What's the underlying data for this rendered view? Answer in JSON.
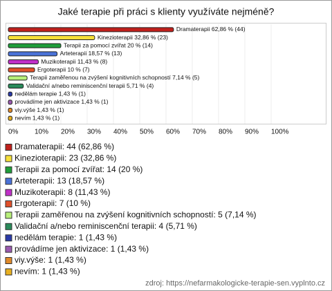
{
  "chart_data": {
    "type": "bar",
    "orientation": "horizontal",
    "title": "Jaké terapie při práci s klienty využíváte nejméně?",
    "categories": [
      "Dramaterapii",
      "Kinezioterapii",
      "Terapii za pomocí zvířat",
      "Arteterapii",
      "Muzikoterapii",
      "Ergoterapii",
      "Terapii zaměřenou na zvýšení kognitivních schopností",
      "Validační a/nebo reminiscenční terapii",
      "nedělám terapie",
      "provádíme jen aktivizace",
      "viy.výše",
      "nevím"
    ],
    "values": [
      62.86,
      32.86,
      20,
      18.57,
      11.43,
      10,
      7.14,
      5.71,
      1.43,
      1.43,
      1.43,
      1.43
    ],
    "value_labels": [
      "Dramaterapii 62,86 % (44)",
      "Kinezioterapii 32,86 % (23)",
      "Terapii za pomocí zvířat 20 % (14)",
      "Arteterapii 18,57 % (13)",
      "Muzikoterapii 11,43 % (8)",
      "Ergoterapii 10 % (7)",
      "Terapii zaměřenou na zvýšení kognitivních schopností 7,14 % (5)",
      "Validační a/nebo reminiscenční terapii 5,71 % (4)",
      "nedělám terapie 1,43 % (1)",
      "provádíme jen aktivizace 1,43 % (1)",
      "viy.výše 1,43 % (1)",
      "nevím 1,43 % (1)"
    ],
    "legend_labels": [
      "Dramaterapii: 44 (62,86 %)",
      "Kinezioterapii: 23 (32,86 %)",
      "Terapii za pomocí zvířat: 14 (20 %)",
      "Arteterapii: 13 (18,57 %)",
      "Muzikoterapii: 8 (11,43 %)",
      "Ergoterapii: 7 (10 %)",
      "Terapii zaměřenou na zvýšení kognitivních schopností: 5 (7,14 %)",
      "Validační a/nebo reminiscenční terapii: 4 (5,71 %)",
      "nedělám terapie: 1 (1,43 %)",
      "provádíme jen aktivizace: 1 (1,43 %)",
      "viy.výše: 1 (1,43 %)",
      "nevím: 1 (1,43 %)"
    ],
    "colors": [
      "#c0201c",
      "#f6e03a",
      "#1f9e3a",
      "#4a72d8",
      "#c030c8",
      "#e0502a",
      "#b8f07a",
      "#2a8a5a",
      "#2a3aa8",
      "#9a5ab0",
      "#e08a2a",
      "#e8b020"
    ],
    "xlim": [
      0,
      100
    ],
    "xticks": [
      {
        "value": 0,
        "label": "0%"
      },
      {
        "value": 10,
        "label": "10%"
      },
      {
        "value": 20,
        "label": "20%"
      },
      {
        "value": 30,
        "label": "30%"
      },
      {
        "value": 40,
        "label": "40%"
      },
      {
        "value": 50,
        "label": "50%"
      },
      {
        "value": 60,
        "label": "60%"
      },
      {
        "value": 70,
        "label": "70%"
      },
      {
        "value": 80,
        "label": "80%"
      },
      {
        "value": 90,
        "label": "90%"
      },
      {
        "value": 100,
        "label": "100%"
      }
    ],
    "source": "zdroj: https://nefarmakologicke-terapie-sen.vyplnto.cz"
  }
}
